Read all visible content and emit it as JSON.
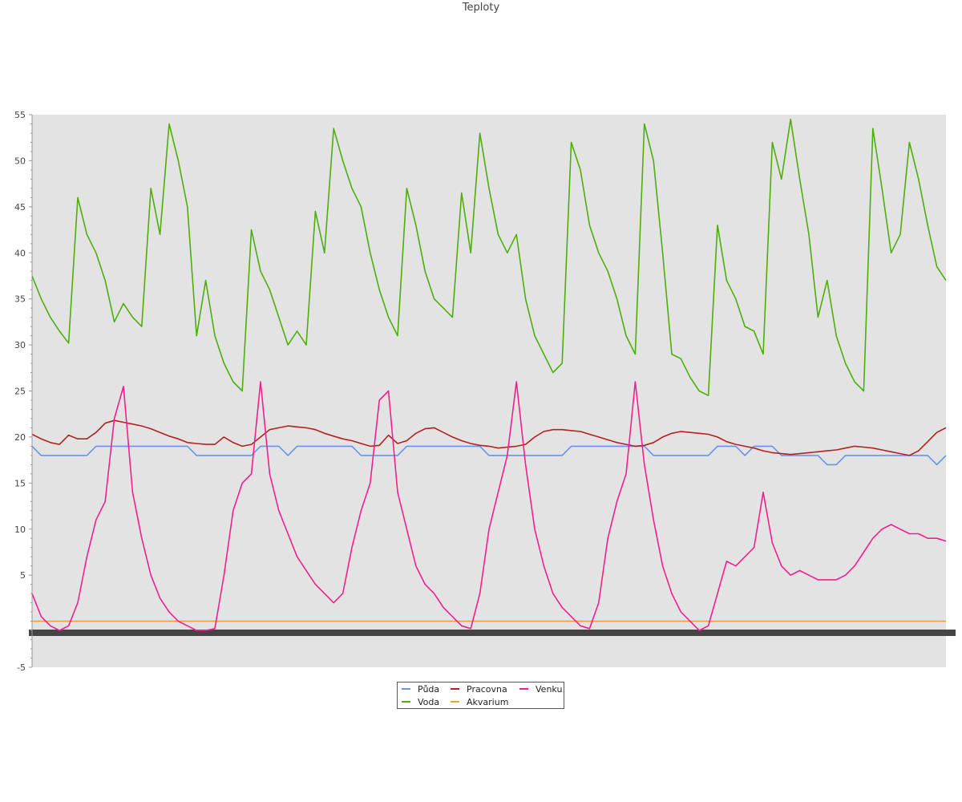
{
  "chart_data": {
    "type": "line",
    "title": "Teploty",
    "xlabel": "",
    "ylabel": "",
    "ylim": [
      -5,
      55
    ],
    "yticks": [
      -5,
      5,
      10,
      15,
      20,
      25,
      30,
      35,
      40,
      45,
      50,
      55
    ],
    "grid": false,
    "legend_position": "bottom-center",
    "x_points": 101,
    "series": [
      {
        "name": "Půda",
        "color": "#6495ED",
        "values": [
          19.0,
          18.0,
          18.0,
          18.0,
          18.0,
          18.0,
          18.0,
          19.0,
          19.0,
          19.0,
          19.0,
          19.0,
          19.0,
          19.0,
          19.0,
          19.0,
          19.0,
          19.0,
          18.0,
          18.0,
          18.0,
          18.0,
          18.0,
          18.0,
          18.0,
          19.0,
          19.0,
          19.0,
          18.0,
          19.0,
          19.0,
          19.0,
          19.0,
          19.0,
          19.0,
          19.0,
          18.0,
          18.0,
          18.0,
          18.0,
          18.0,
          19.0,
          19.0,
          19.0,
          19.0,
          19.0,
          19.0,
          19.0,
          19.0,
          19.0,
          18.0,
          18.0,
          18.0,
          18.0,
          18.0,
          18.0,
          18.0,
          18.0,
          18.0,
          19.0,
          19.0,
          19.0,
          19.0,
          19.0,
          19.0,
          19.0,
          19.0,
          19.0,
          18.0,
          18.0,
          18.0,
          18.0,
          18.0,
          18.0,
          18.0,
          19.0,
          19.0,
          19.0,
          18.0,
          19.0,
          19.0,
          19.0,
          18.0,
          18.0,
          18.0,
          18.0,
          18.0,
          17.0,
          17.0,
          18.0,
          18.0,
          18.0,
          18.0,
          18.0,
          18.0,
          18.0,
          18.0,
          18.0,
          18.0,
          17.0,
          18.0
        ]
      },
      {
        "name": "Voda",
        "color": "#4DAF0A",
        "values": [
          37.5,
          35.0,
          33.0,
          31.5,
          30.2,
          46.0,
          42.0,
          40.0,
          37.0,
          32.5,
          34.5,
          33.0,
          32.0,
          47.0,
          42.0,
          54.0,
          50.0,
          45.0,
          31.0,
          37.0,
          31.0,
          28.0,
          26.0,
          25.0,
          42.5,
          38.0,
          36.0,
          33.0,
          30.0,
          31.5,
          30.0,
          44.5,
          40.0,
          53.5,
          50.0,
          47.0,
          45.0,
          40.0,
          36.0,
          33.0,
          31.0,
          47.0,
          43.0,
          38.0,
          35.0,
          34.0,
          33.0,
          46.5,
          40.0,
          53.0,
          47.0,
          42.0,
          40.0,
          42.0,
          35.0,
          31.0,
          29.0,
          27.0,
          28.0,
          52.0,
          49.0,
          43.0,
          40.0,
          38.0,
          35.0,
          31.0,
          29.0,
          54.0,
          50.0,
          40.0,
          29.0,
          28.5,
          26.5,
          25.0,
          24.5,
          43.0,
          37.0,
          35.0,
          32.0,
          31.5,
          29.0,
          52.0,
          48.0,
          54.5,
          48.0,
          42.0,
          33.0,
          37.0,
          31.0,
          28.0,
          26.0,
          25.0,
          53.5,
          47.0,
          40.0,
          42.0,
          52.0,
          48.0,
          43.0,
          38.5,
          37.0
        ]
      },
      {
        "name": "Pracovna",
        "color": "#B22222",
        "values": [
          20.3,
          19.8,
          19.4,
          19.2,
          20.2,
          19.8,
          19.8,
          20.5,
          21.5,
          21.8,
          21.6,
          21.4,
          21.2,
          20.9,
          20.5,
          20.1,
          19.8,
          19.4,
          19.3,
          19.2,
          19.2,
          20.0,
          19.4,
          19.0,
          19.2,
          20.0,
          20.8,
          21.0,
          21.2,
          21.1,
          21.0,
          20.8,
          20.4,
          20.1,
          19.8,
          19.6,
          19.3,
          19.0,
          19.1,
          20.2,
          19.3,
          19.6,
          20.4,
          20.9,
          21.0,
          20.5,
          20.0,
          19.6,
          19.3,
          19.1,
          19.0,
          18.8,
          18.9,
          19.0,
          19.2,
          20.0,
          20.6,
          20.8,
          20.8,
          20.7,
          20.6,
          20.3,
          20.0,
          19.7,
          19.4,
          19.2,
          19.0,
          19.1,
          19.4,
          20.0,
          20.4,
          20.6,
          20.5,
          20.4,
          20.3,
          20.0,
          19.5,
          19.2,
          19.0,
          18.8,
          18.5,
          18.3,
          18.2,
          18.1,
          18.2,
          18.3,
          18.4,
          18.5,
          18.6,
          18.8,
          19.0,
          18.9,
          18.8,
          18.6,
          18.4,
          18.2,
          18.0,
          18.5,
          19.5,
          20.5,
          21.0
        ]
      },
      {
        "name": "Akvarium",
        "color": "#E8A33C",
        "values": [
          0.0,
          0.0,
          0.0,
          0.0,
          0.0,
          0.0,
          0.0,
          0.0,
          0.0,
          0.0,
          0.0,
          0.0,
          0.0,
          0.0,
          0.0,
          0.0,
          0.0,
          0.0,
          0.0,
          0.0,
          0.0,
          0.0,
          0.0,
          0.0,
          0.0,
          0.0,
          0.0,
          0.0,
          0.0,
          0.0,
          0.0,
          0.0,
          0.0,
          0.0,
          0.0,
          0.0,
          0.0,
          0.0,
          0.0,
          0.0,
          0.0,
          0.0,
          0.0,
          0.0,
          0.0,
          0.0,
          0.0,
          0.0,
          0.0,
          0.0,
          0.0,
          0.0,
          0.0,
          0.0,
          0.0,
          0.0,
          0.0,
          0.0,
          0.0,
          0.0,
          0.0,
          0.0,
          0.0,
          0.0,
          0.0,
          0.0,
          0.0,
          0.0,
          0.0,
          0.0,
          0.0,
          0.0,
          0.0,
          0.0,
          0.0,
          0.0,
          0.0,
          0.0,
          0.0,
          0.0,
          0.0,
          0.0,
          0.0,
          0.0,
          0.0,
          0.0,
          0.0,
          0.0,
          0.0,
          0.0,
          0.0,
          0.0,
          0.0,
          0.0,
          0.0,
          0.0,
          0.0,
          0.0,
          0.0,
          0.0,
          0.0
        ]
      },
      {
        "name": "Venku",
        "color": "#F0208E",
        "values": [
          3.0,
          0.5,
          -0.5,
          -1.0,
          -0.5,
          2.0,
          7.0,
          11.0,
          13.0,
          22.0,
          25.5,
          14.0,
          9.0,
          5.0,
          2.5,
          1.0,
          0.0,
          -0.5,
          -1.0,
          -1.0,
          -0.8,
          5.0,
          12.0,
          15.0,
          16.0,
          26.0,
          16.0,
          12.0,
          9.5,
          7.0,
          5.5,
          4.0,
          3.0,
          2.0,
          3.0,
          8.0,
          12.0,
          15.0,
          24.0,
          25.0,
          14.0,
          10.0,
          6.0,
          4.0,
          3.0,
          1.5,
          0.5,
          -0.5,
          -0.8,
          3.0,
          10.0,
          14.0,
          18.0,
          26.0,
          17.0,
          10.0,
          6.0,
          3.0,
          1.5,
          0.5,
          -0.5,
          -0.8,
          2.0,
          9.0,
          13.0,
          16.0,
          26.0,
          17.0,
          11.0,
          6.0,
          3.0,
          1.0,
          0.0,
          -1.0,
          -0.5,
          3.0,
          6.5,
          6.0,
          7.0,
          8.0,
          14.0,
          8.5,
          6.0,
          5.0,
          5.5,
          5.0,
          4.5,
          4.5,
          4.5,
          5.0,
          6.0,
          7.5,
          9.0,
          10.0,
          10.5,
          10.0,
          9.5,
          9.5,
          9.0,
          9.0,
          8.7
        ]
      }
    ]
  },
  "legend": {
    "items": [
      {
        "label": "Půda"
      },
      {
        "label": "Voda"
      },
      {
        "label": "Pracovna"
      },
      {
        "label": "Akvarium"
      },
      {
        "label": "Venku"
      }
    ]
  }
}
